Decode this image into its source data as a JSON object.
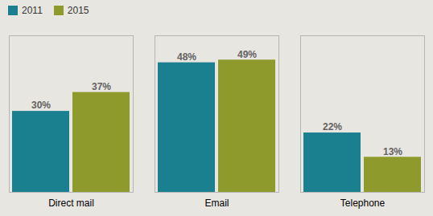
{
  "chart_data": {
    "type": "bar",
    "categories": [
      "Direct mail",
      "Email",
      "Telephone"
    ],
    "series": [
      {
        "name": "2011",
        "color": "#1a7f8e",
        "values": [
          30,
          48,
          22
        ],
        "value_labels": [
          "30%",
          "48%",
          "22%"
        ]
      },
      {
        "name": "2015",
        "color": "#8e9a2b",
        "values": [
          37,
          49,
          13
        ],
        "value_labels": [
          "37%",
          "49%",
          "13%"
        ]
      }
    ],
    "ylim": [
      0,
      58
    ],
    "yticks": [],
    "tick_labels": "x",
    "grid": false,
    "legend": "upper left",
    "data_labels": true
  }
}
